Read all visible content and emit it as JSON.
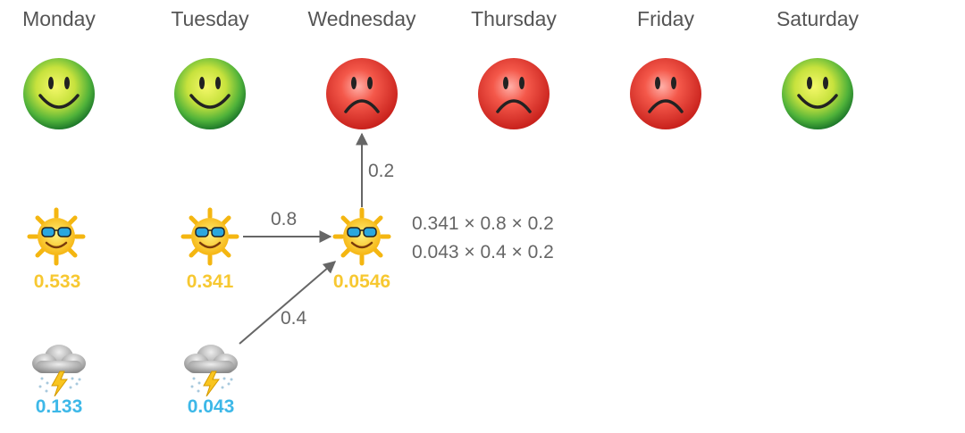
{
  "days": [
    "Monday",
    "Tuesday",
    "Wednesday",
    "Thursday",
    "Friday",
    "Saturday"
  ],
  "moods": [
    "happy",
    "happy",
    "sad",
    "sad",
    "sad",
    "happy"
  ],
  "sunny_probs": [
    "0.533",
    "0.341",
    "0.0546"
  ],
  "rainy_probs": [
    "0.133",
    "0.043"
  ],
  "edges": {
    "sun_to_sun": "0.8",
    "rain_to_sun": "0.4",
    "sun_to_mood": "0.2"
  },
  "formula": {
    "line1": "0.341 × 0.8 × 0.2",
    "line2": "0.043 × 0.4 × 0.2"
  },
  "icons": {
    "happy": "happy-face-icon",
    "sad": "sad-face-icon",
    "sunny": "sun-with-sunglasses-icon",
    "rainy": "storm-cloud-icon"
  },
  "colors": {
    "sunny_prob": "#f7c831",
    "rainy_prob": "#3db8e8",
    "arrow": "#666666",
    "text": "#555555"
  }
}
